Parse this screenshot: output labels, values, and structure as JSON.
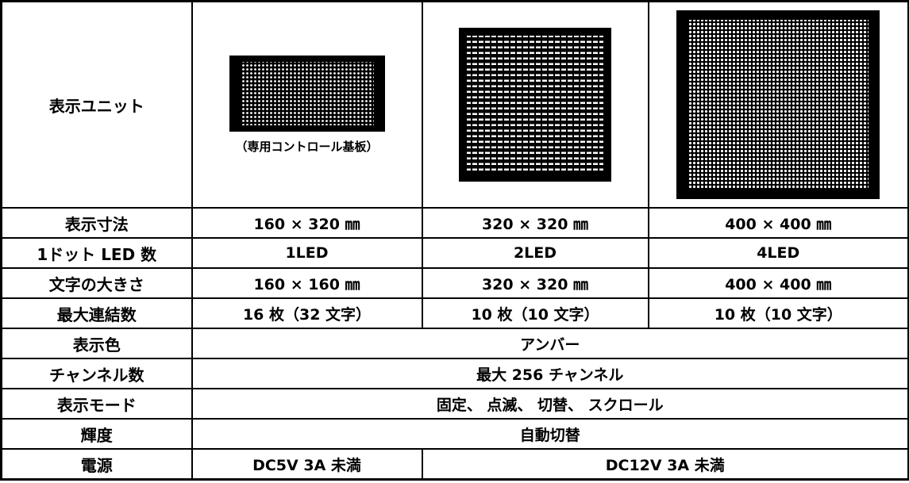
{
  "table": {
    "unit_label": "表示ユニット",
    "unit_caption": "（専用コントロール基板）",
    "rows": [
      [
        "表示寸法",
        "160 × 320 ㎜",
        "320 × 320 ㎜",
        "400 × 400 ㎜"
      ],
      [
        "1ドット LED 数",
        "1LED",
        "2LED",
        "4LED"
      ],
      [
        "文字の大きさ",
        "160 × 160 ㎜",
        "320 × 320 ㎜",
        "400 × 400 ㎜"
      ],
      [
        "最大連結数",
        "16 枚（32 文字）",
        "10 枚（10 文字）",
        "10 枚（10 文字）"
      ],
      [
        "表示色",
        "アンバー"
      ],
      [
        "チャンネル数",
        "最大 256 チャンネル"
      ],
      [
        "表示モード",
        "固定、 点滅、 切替、 スクロール"
      ],
      [
        "輝度",
        "自動切替"
      ],
      [
        "電源",
        "DC5V 3A 未満",
        "DC12V 3A 未満"
      ]
    ]
  }
}
